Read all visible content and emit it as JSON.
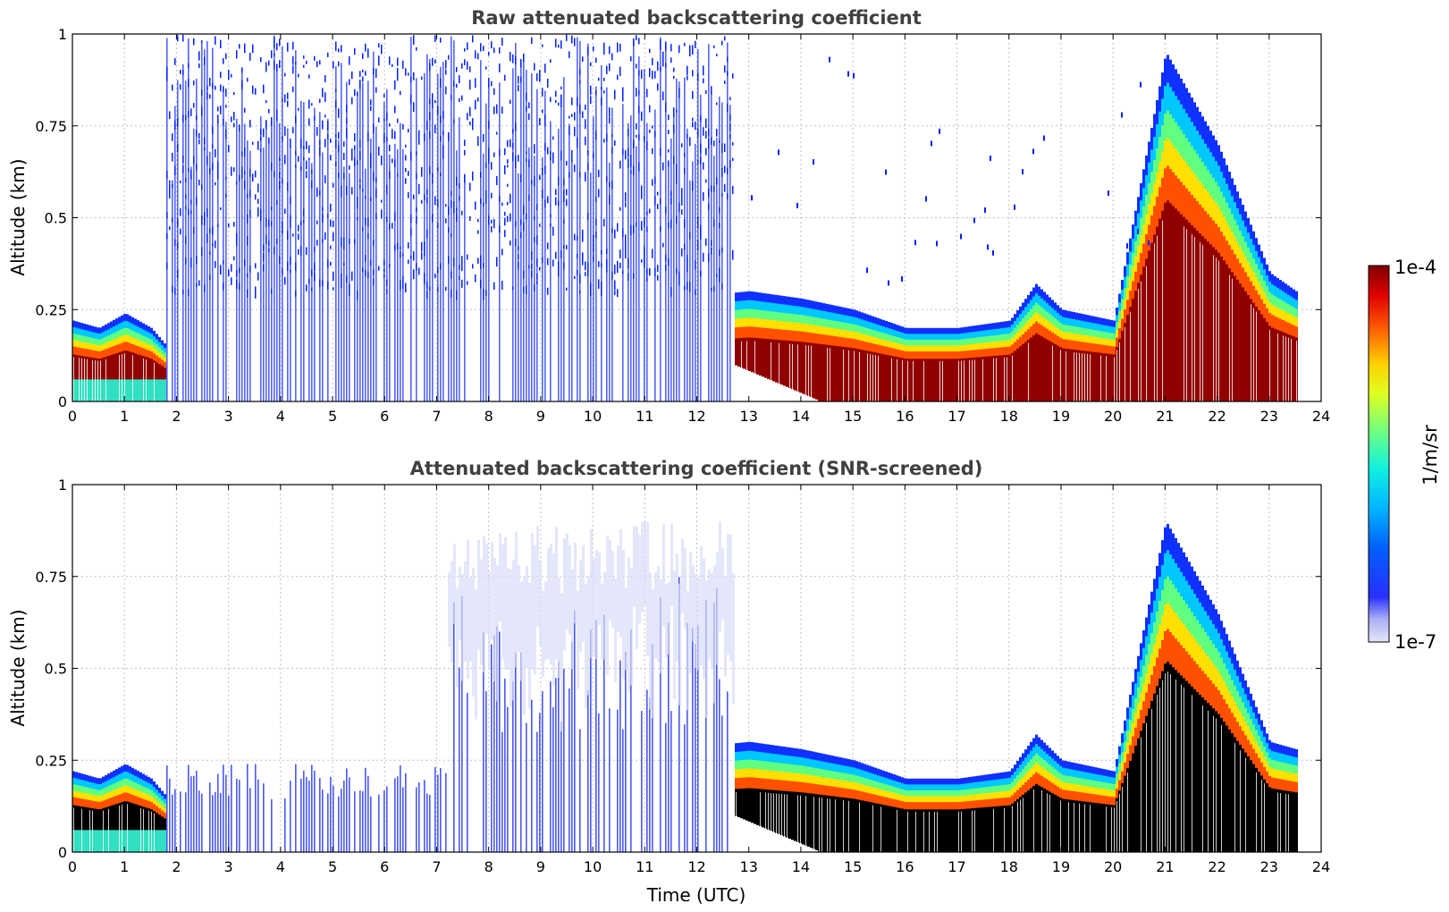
{
  "chart_data": {
    "type": "heatmap",
    "x_range": [
      0,
      24
    ],
    "y_range": [
      0,
      1
    ],
    "x_ticks": [
      "0",
      "1",
      "2",
      "3",
      "4",
      "5",
      "6",
      "7",
      "8",
      "9",
      "10",
      "11",
      "12",
      "13",
      "14",
      "15",
      "16",
      "17",
      "18",
      "19",
      "20",
      "21",
      "22",
      "23",
      "24"
    ],
    "y_ticks": [
      "0",
      "0.25",
      "0.5",
      "0.75",
      "1"
    ],
    "xlabel": "Time (UTC)",
    "grid": true,
    "panels": [
      {
        "title": "Raw attenuated backscattering coefficient",
        "ylabel": "Altitude (km)",
        "screened": false,
        "boundary_layer_top_km": [
          [
            0,
            0.22
          ],
          [
            0.5,
            0.2
          ],
          [
            1,
            0.24
          ],
          [
            1.5,
            0.2
          ],
          [
            1.8,
            0.15
          ],
          [
            13,
            0.3
          ],
          [
            14,
            0.28
          ],
          [
            15,
            0.25
          ],
          [
            16,
            0.2
          ],
          [
            17,
            0.2
          ],
          [
            18,
            0.22
          ],
          [
            18.5,
            0.32
          ],
          [
            19,
            0.25
          ],
          [
            20,
            0.22
          ],
          [
            21,
            0.95
          ],
          [
            22,
            0.7
          ],
          [
            23,
            0.35
          ],
          [
            23.5,
            0.3
          ]
        ]
      },
      {
        "title": "Attenuated backscattering coefficient (SNR-screened)",
        "ylabel": "Altitude (km)",
        "screened": true,
        "boundary_layer_top_km": [
          [
            0,
            0.22
          ],
          [
            0.5,
            0.2
          ],
          [
            1,
            0.24
          ],
          [
            1.5,
            0.2
          ],
          [
            1.8,
            0.15
          ],
          [
            13,
            0.3
          ],
          [
            14,
            0.28
          ],
          [
            15,
            0.25
          ],
          [
            16,
            0.2
          ],
          [
            17,
            0.2
          ],
          [
            18,
            0.22
          ],
          [
            18.5,
            0.32
          ],
          [
            19,
            0.25
          ],
          [
            20,
            0.22
          ],
          [
            21,
            0.9
          ],
          [
            22,
            0.65
          ],
          [
            23,
            0.3
          ],
          [
            23.5,
            0.28
          ]
        ]
      }
    ],
    "colorbar": {
      "label": "1/m/sr",
      "max_label": "1e-4",
      "min_label": "1e-7",
      "colormap": "jet",
      "scale": "log"
    }
  }
}
